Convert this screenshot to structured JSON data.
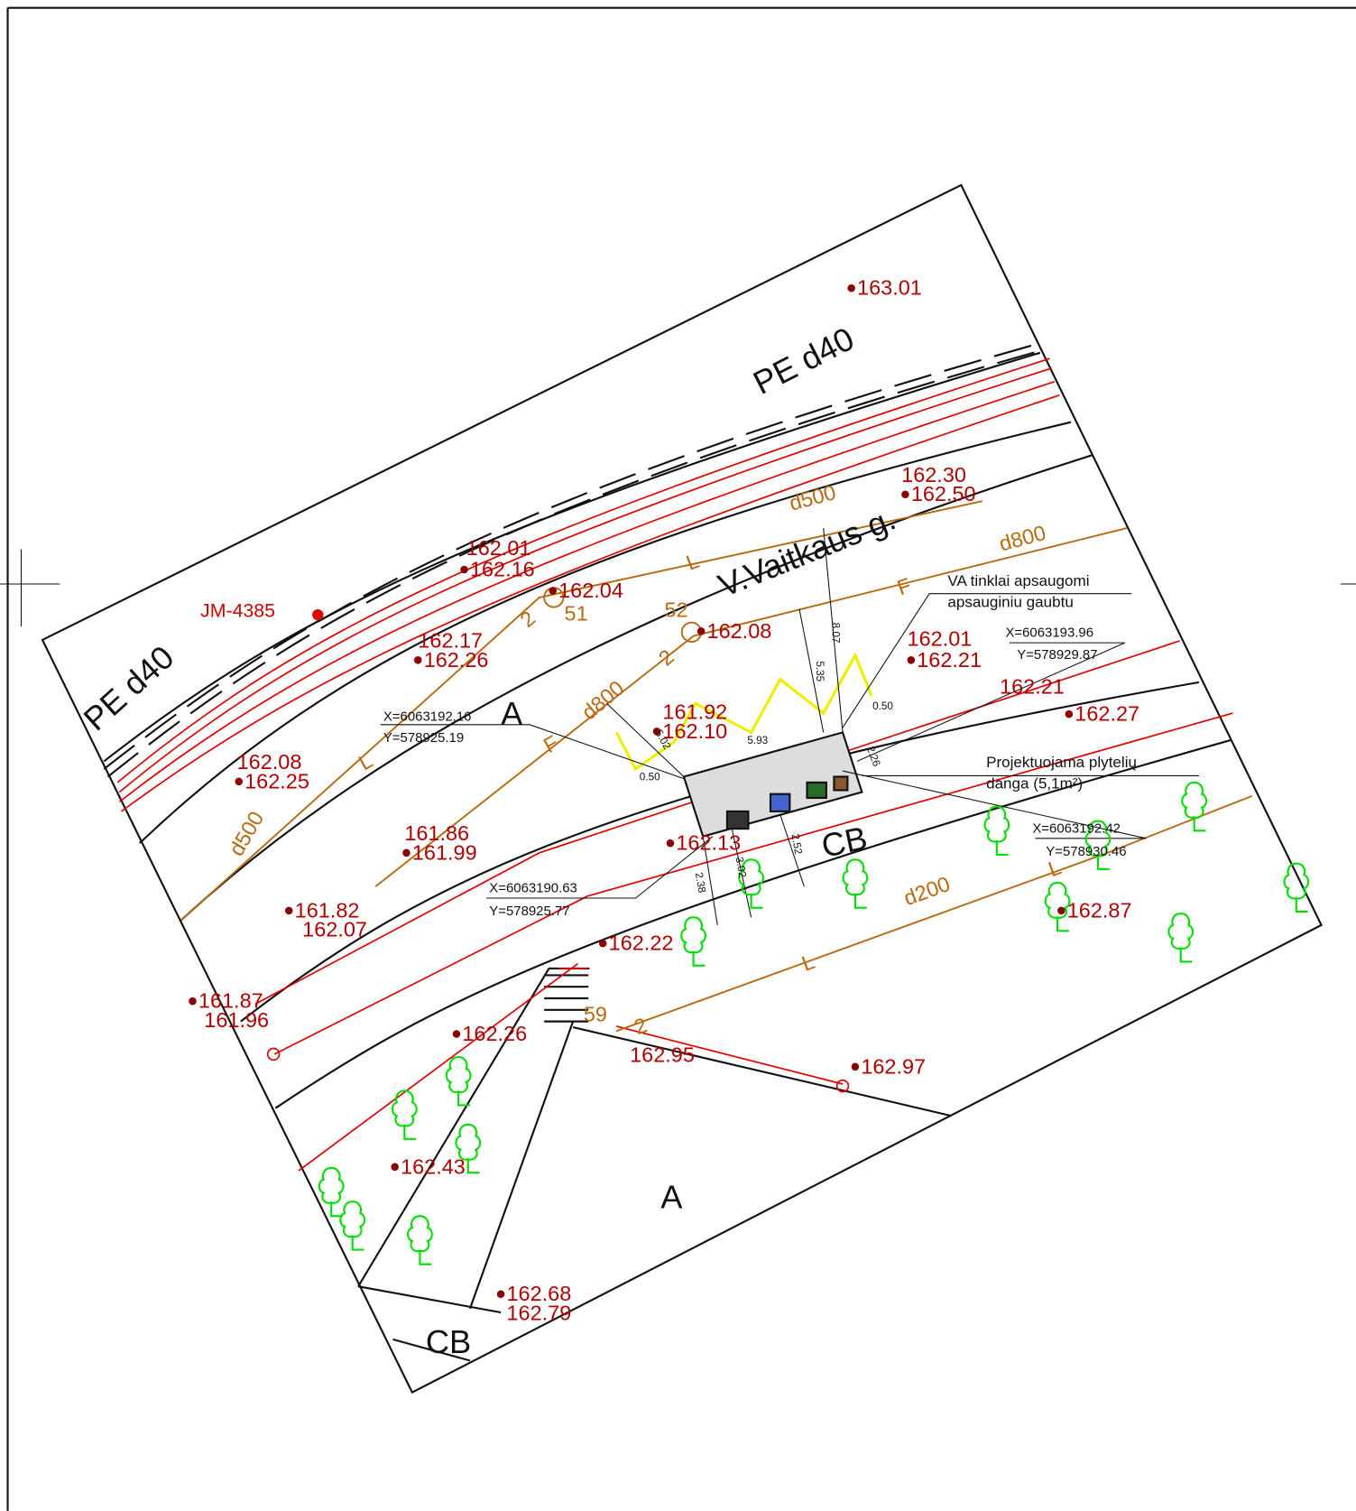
{
  "street": "V.Vaitkaus g.",
  "elevations": [
    "163.01",
    "162.30",
    "162.50",
    "162.01",
    "162.16",
    "162.04",
    "162.08",
    "162.17",
    "162.26",
    "162.01",
    "162.21",
    "162.21",
    "162.27",
    "161.92",
    "162.10",
    "162.08",
    "162.25",
    "161.86",
    "161.99",
    "162.13",
    "161.82",
    "162.07",
    "162.22",
    "162.87",
    "161.87",
    "161.96",
    "162.26",
    "162.95",
    "162.97",
    "162.43",
    "162.68",
    "162.79"
  ],
  "utility_labels": [
    "PE d40",
    "PE d40",
    "JM-4385",
    "d500",
    "d500",
    "d800",
    "d800",
    "d200",
    "L",
    "F",
    "L",
    "F",
    "L",
    "L",
    "2",
    "2",
    "2",
    "51",
    "52",
    "59"
  ],
  "zones": [
    "A",
    "A",
    "CB",
    "CB"
  ],
  "dimensions": [
    "5.02",
    "5.93",
    "8.07",
    "5.35",
    "0.50",
    "0.50",
    "2.26",
    "2.38",
    "3.02",
    "2.52"
  ],
  "callouts": [
    {
      "lines": [
        "VA tinklai apsaugomi",
        "apsauginiu gaubtu"
      ]
    },
    {
      "lines": [
        "Projektuojama plytelių",
        "danga (5,1m²)"
      ]
    }
  ],
  "coordinates": [
    {
      "x": "X=6063193.96",
      "y": "Y=578929.87"
    },
    {
      "x": "X=6063192.16",
      "y": "Y=578925.19"
    },
    {
      "x": "X=6063192.42",
      "y": "Y=578930.46"
    },
    {
      "x": "X=6063190.63",
      "y": "Y=578925.77"
    }
  ]
}
